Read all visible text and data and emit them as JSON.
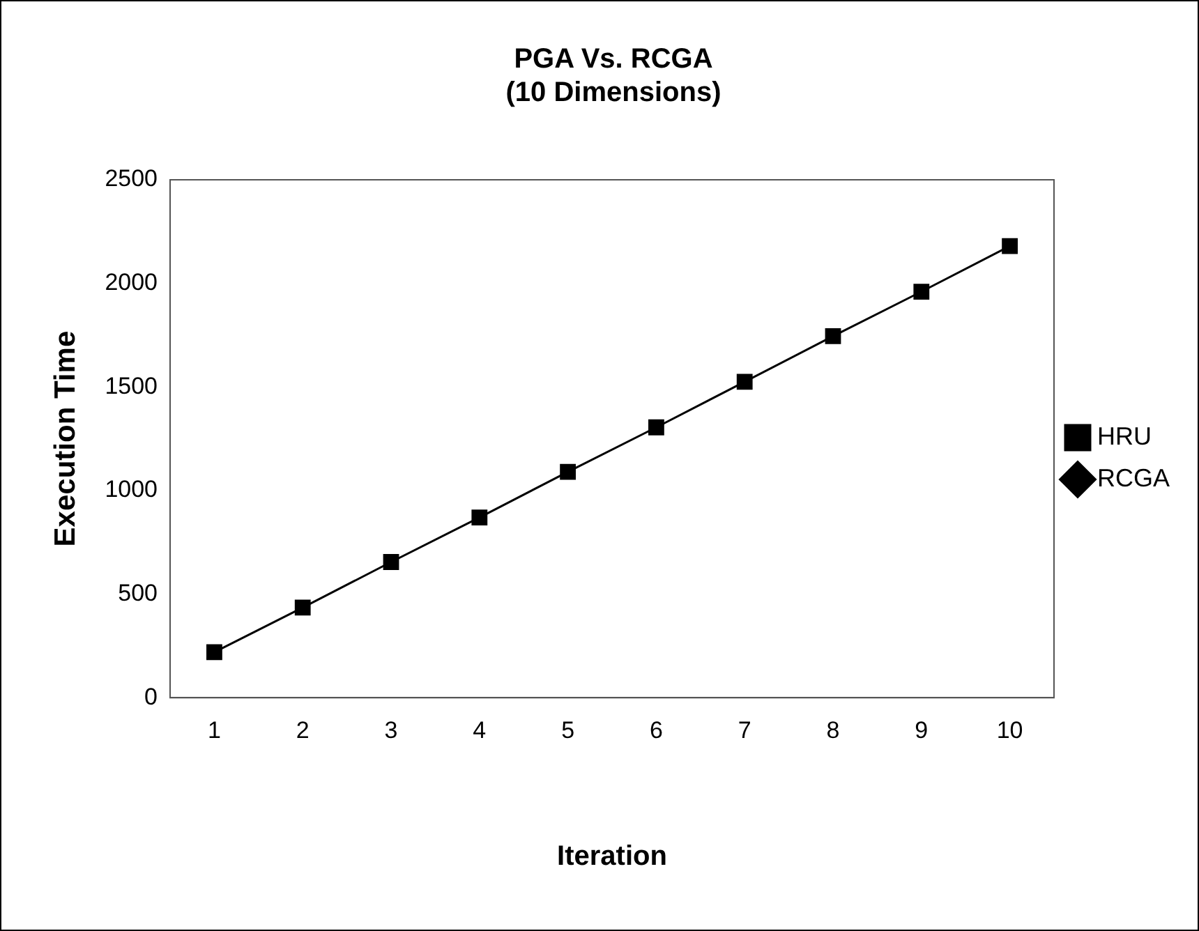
{
  "chart_data": {
    "type": "line",
    "title": "PGA Vs. RCGA",
    "subtitle": "(10 Dimensions)",
    "xlabel": "Iteration",
    "ylabel": "Execution Time",
    "categories": [
      "1",
      "2",
      "3",
      "4",
      "5",
      "6",
      "7",
      "8",
      "9",
      "10"
    ],
    "series": [
      {
        "name": "HRU",
        "color": "#000000",
        "marker": "square",
        "values": [
          220,
          435,
          655,
          870,
          1090,
          1305,
          1525,
          1745,
          1960,
          2180
        ]
      },
      {
        "name": "RCGA",
        "color": "#000000",
        "marker": "diamond",
        "values": [
          null,
          null,
          null,
          null,
          null,
          null,
          null,
          null,
          null,
          null
        ]
      }
    ],
    "ylim": [
      0,
      2500
    ],
    "yticks": [
      0,
      500,
      1000,
      1500,
      2000,
      2500
    ],
    "grid": false,
    "legend": "right",
    "line_style": "solid"
  }
}
